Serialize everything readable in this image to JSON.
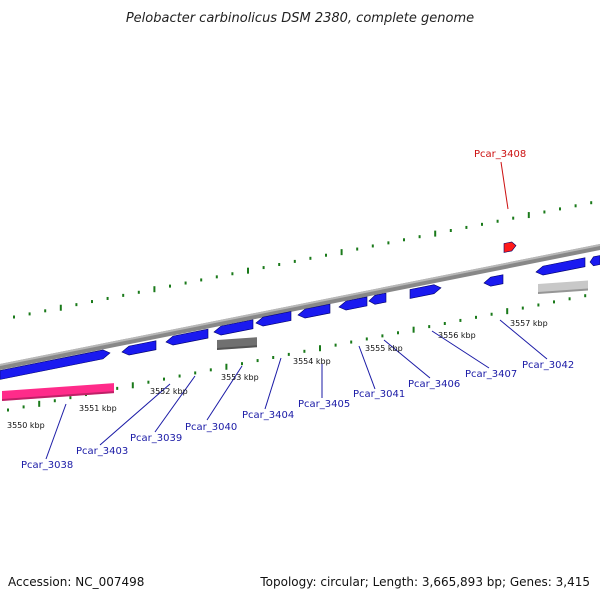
{
  "title": "Pelobacter carbinolicus DSM 2380, complete genome",
  "footer": {
    "accession": "Accession: NC_007498",
    "summary": "Topology: circular; Length: 3,665,893 bp; Genes: 3,415"
  },
  "colors": {
    "gene": "#1a1af0",
    "gene_pseudo": "#707070",
    "gene_rna": "#ff2b8a",
    "gene_light": "#c8c8c8",
    "highlight": "#ff1a1a",
    "ticks": "#1a7a1a",
    "label": "#1a1aa6",
    "label_highlight": "#cc1111",
    "backbone": "#888888"
  },
  "tick_labels": [
    "3550 kbp",
    "3551 kbp",
    "3552 kbp",
    "3553 kbp",
    "3554 kbp",
    "3555 kbp",
    "3556 kbp",
    "3557 kbp"
  ],
  "gene_labels": [
    {
      "name": "Pcar_3038",
      "highlight": false
    },
    {
      "name": "Pcar_3403",
      "highlight": false
    },
    {
      "name": "Pcar_3039",
      "highlight": false
    },
    {
      "name": "Pcar_3040",
      "highlight": false
    },
    {
      "name": "Pcar_3404",
      "highlight": false
    },
    {
      "name": "Pcar_3405",
      "highlight": false
    },
    {
      "name": "Pcar_3041",
      "highlight": false
    },
    {
      "name": "Pcar_3406",
      "highlight": false
    },
    {
      "name": "Pcar_3407",
      "highlight": false
    },
    {
      "name": "Pcar_3042",
      "highlight": false
    },
    {
      "name": "Pcar_3408",
      "highlight": true
    }
  ]
}
